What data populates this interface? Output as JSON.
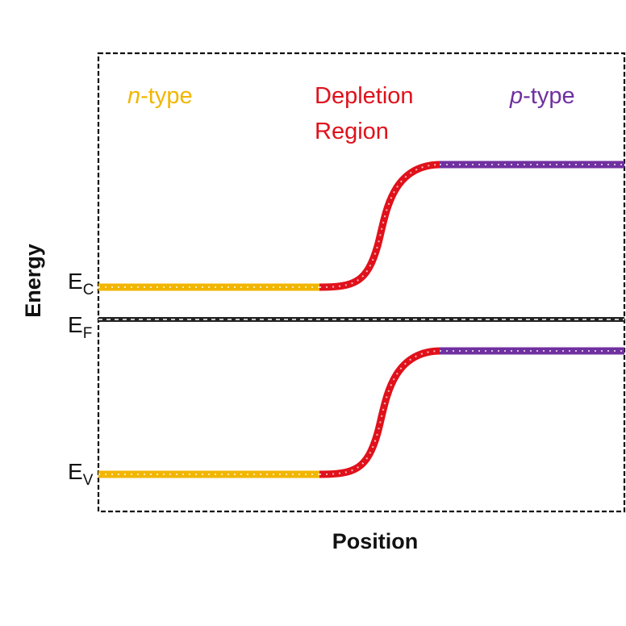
{
  "diagram": {
    "type": "band-diagram",
    "xlabel": "Position",
    "ylabel": "Energy",
    "regions": [
      {
        "key": "n",
        "italic": "n",
        "suffix": "-type",
        "color": "#f2b600"
      },
      {
        "key": "depletion",
        "lines": [
          "Depletion",
          "Region"
        ],
        "color": "#e0111b"
      },
      {
        "key": "p",
        "italic": "p",
        "suffix": "-type",
        "color": "#7030a0"
      }
    ],
    "levels": {
      "conduction": {
        "main": "E",
        "sub": "C"
      },
      "fermi": {
        "main": "E",
        "sub": "F"
      },
      "valence": {
        "main": "E",
        "sub": "V"
      }
    },
    "colors": {
      "n": "#f2b600",
      "depletion": "#e0111b",
      "p": "#7030a0",
      "fermi": "#222222",
      "frame": "#111111"
    }
  }
}
